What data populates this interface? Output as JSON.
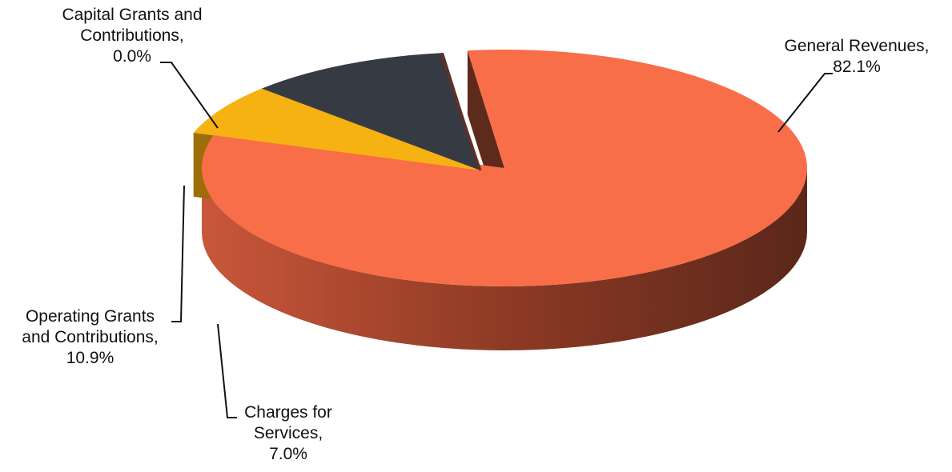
{
  "chart_data": {
    "type": "pie",
    "title": "",
    "units": "%",
    "slices": [
      {
        "name": "General Revenues",
        "value": 82.1,
        "color": "#F86E48",
        "side_dark": "#5E2A1C",
        "side_light": "#C9573A",
        "label_lines": [
          "General Revenues,",
          "82.1%"
        ]
      },
      {
        "name": "Charges for Services",
        "value": 7.0,
        "color": "#F6B112",
        "side_dark": "#9C6E08",
        "side_light": "#E7A412",
        "label_lines": [
          "Charges for",
          "Services,",
          "7.0%"
        ]
      },
      {
        "name": "Operating Grants and Contributions",
        "value": 10.9,
        "color": "#363A43",
        "side_dark": "#1E2026",
        "side_light": "#2C2F36",
        "label_lines": [
          "Operating Grants",
          "and Contributions,",
          "10.9%"
        ]
      },
      {
        "name": "Capital Grants and Contributions",
        "value": 0.0,
        "color": "#8A3A26",
        "side_dark": "#5E2A1C",
        "side_light": "#8A3A26",
        "label_lines": [
          "Capital Grants and",
          "Contributions,",
          "0.0%"
        ]
      }
    ]
  }
}
